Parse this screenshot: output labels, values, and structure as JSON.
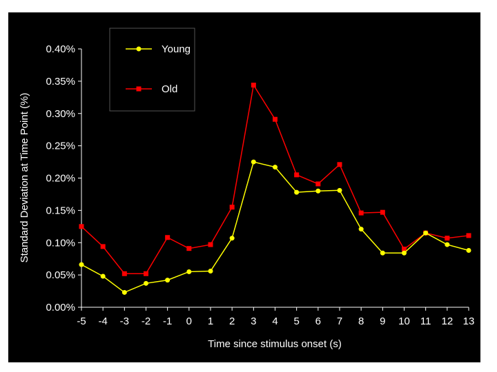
{
  "chart_data": {
    "type": "line",
    "xlabel": "Time since stimulus onset (s)",
    "ylabel": "Standard Deviation at Time Point (%)",
    "x": [
      -5,
      -4,
      -3,
      -2,
      -1,
      0,
      1,
      2,
      3,
      4,
      5,
      6,
      7,
      8,
      9,
      10,
      11,
      12,
      13
    ],
    "xlim": [
      -5,
      13
    ],
    "ylim": [
      0,
      0.4
    ],
    "yticks": [
      0.0,
      0.05,
      0.1,
      0.15,
      0.2,
      0.25,
      0.3,
      0.35,
      0.4
    ],
    "ytick_labels": [
      "0.00%",
      "0.05%",
      "0.10%",
      "0.15%",
      "0.20%",
      "0.25%",
      "0.30%",
      "0.35%",
      "0.40%"
    ],
    "grid": false,
    "legend_position": "top-left",
    "series": [
      {
        "name": "Young",
        "color": "#ffff00",
        "marker": "circle",
        "values": [
          0.066,
          0.048,
          0.023,
          0.037,
          0.042,
          0.055,
          0.056,
          0.107,
          0.225,
          0.217,
          0.178,
          0.18,
          0.181,
          0.121,
          0.084,
          0.084,
          0.115,
          0.097,
          0.088
        ]
      },
      {
        "name": "Old",
        "color": "#ff0000",
        "marker": "square",
        "values": [
          0.125,
          0.094,
          0.052,
          0.052,
          0.108,
          0.091,
          0.097,
          0.155,
          0.344,
          0.291,
          0.205,
          0.191,
          0.221,
          0.146,
          0.147,
          0.09,
          0.115,
          0.107,
          0.111
        ]
      }
    ]
  }
}
